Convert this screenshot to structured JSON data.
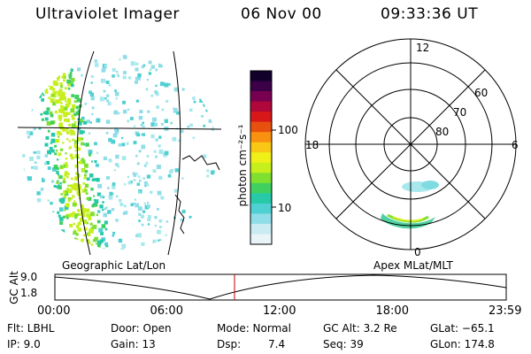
{
  "header": {
    "title": "Ultraviolet Imager",
    "date": "06 Nov 00",
    "time": "09:33:36 UT"
  },
  "colorbar": {
    "unit_label": "photon cm⁻²s⁻¹",
    "tick_100": "100",
    "tick_10": "10",
    "colors": [
      "#e8f4f8",
      "#c8ecf2",
      "#8fdde8",
      "#4fd0d2",
      "#26c9a8",
      "#3fd060",
      "#7fe030",
      "#c6ef1c",
      "#f0f018",
      "#f8c814",
      "#f89010",
      "#e85010",
      "#d81818",
      "#b0083a",
      "#780050",
      "#3c0048",
      "#10002a"
    ]
  },
  "polar": {
    "mlt_12": "12",
    "mlt_18": "18",
    "mlt_6": "6",
    "mlt_0": "0",
    "lat_60": "60",
    "lat_70": "70",
    "lat_80": "80"
  },
  "projection": {
    "left_label": "Geographic Lat/Lon",
    "right_label": "Apex MLat/MLT"
  },
  "altitude_plot": {
    "axis_label": "GC Alt",
    "tick_top": "9.0",
    "tick_bottom": "1.8",
    "time_ticks": [
      "00:00",
      "06:00",
      "12:00",
      "18:00",
      "23:59"
    ],
    "current_time_fraction": 0.398
  },
  "info": {
    "flt": "Flt: LBHL",
    "ip": "IP: 9.0",
    "door": "Door: Open",
    "gain": "Gain: 13",
    "mode": "Mode: Normal",
    "dsp": "Dsp:",
    "dsp_val": "7.4",
    "gc_alt": "GC Alt: 3.2 Re",
    "seq": "Seq: 39",
    "glat": "GLat: −65.1",
    "glon": "GLon: 174.8"
  }
}
